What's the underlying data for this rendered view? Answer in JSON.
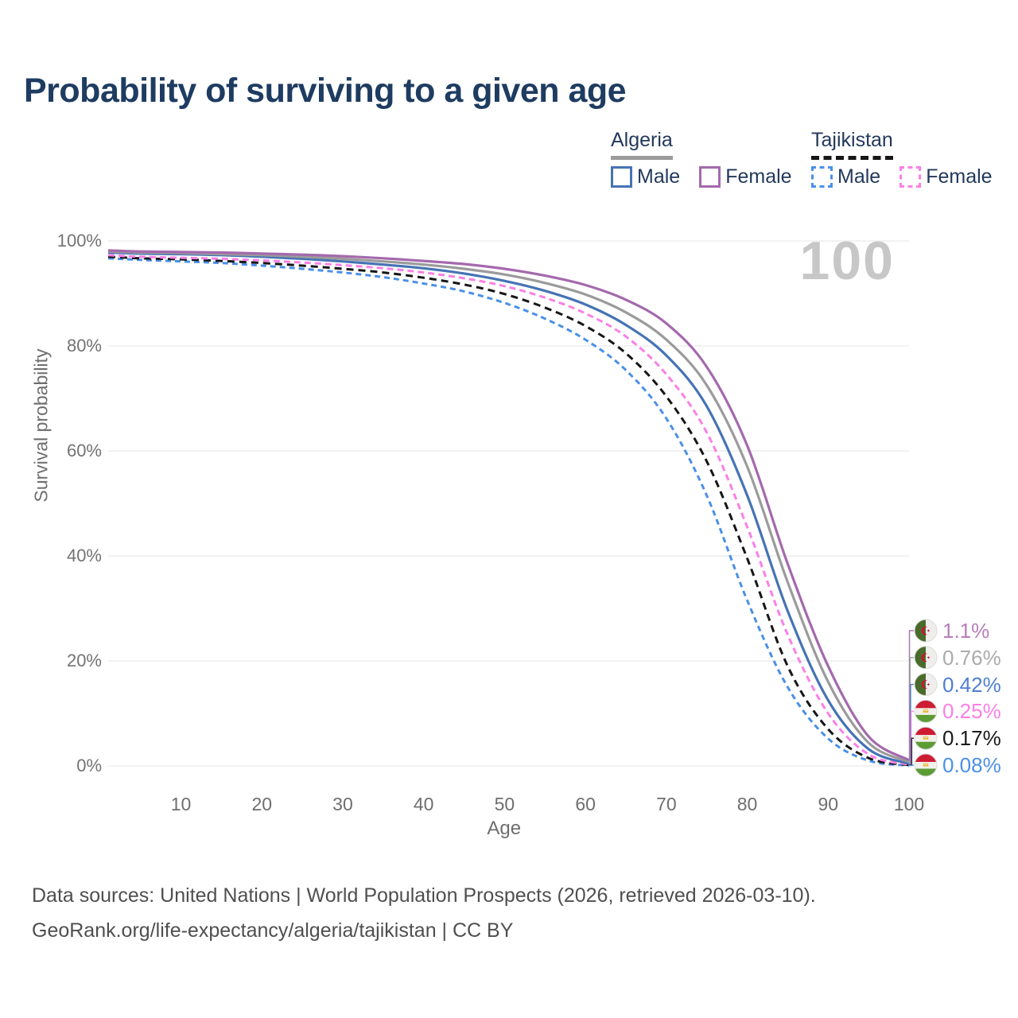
{
  "title": "Probability of surviving to a given age",
  "hover_age_label": "100",
  "legend": {
    "groups": [
      {
        "country": "Algeria",
        "line_style": "solid",
        "underline_color": "#9b9b9b",
        "items": [
          {
            "label": "Male",
            "color": "#4673b5"
          },
          {
            "label": "Female",
            "color": "#a469ad"
          }
        ]
      },
      {
        "country": "Tajikistan",
        "line_style": "dashed",
        "underline_color": "#161616",
        "items": [
          {
            "label": "Male",
            "color": "#4a90e8"
          },
          {
            "label": "Female",
            "color": "#fb80e6"
          }
        ]
      }
    ]
  },
  "chart_data": {
    "type": "line",
    "xlabel": "Age",
    "ylabel": "Survival probability",
    "xlim": [
      1,
      100
    ],
    "ylim": [
      0,
      100
    ],
    "grid": "horizontal",
    "x_ticks": [
      10,
      20,
      30,
      40,
      50,
      60,
      70,
      80,
      90,
      100
    ],
    "y_ticks": [
      {
        "value": 0,
        "label": "0%"
      },
      {
        "value": 20,
        "label": "20%"
      },
      {
        "value": 40,
        "label": "40%"
      },
      {
        "value": 60,
        "label": "60%"
      },
      {
        "value": 80,
        "label": "80%"
      },
      {
        "value": 100,
        "label": "100%"
      }
    ],
    "ages": [
      1,
      5,
      10,
      15,
      20,
      25,
      30,
      35,
      40,
      45,
      50,
      55,
      60,
      65,
      70,
      75,
      80,
      85,
      90,
      95,
      100
    ],
    "series": [
      {
        "name": "Algeria Female",
        "country": "Algeria",
        "sex": "Female",
        "style": "solid",
        "color": "#a469ad",
        "end_label": "1.1%",
        "end_label_color": "#b97dbb",
        "flag": "algeria",
        "values": [
          98.2,
          98.0,
          97.9,
          97.8,
          97.6,
          97.4,
          97.1,
          96.7,
          96.2,
          95.6,
          94.7,
          93.4,
          91.6,
          88.8,
          84.3,
          76.0,
          61.0,
          38.5,
          19.0,
          5.6,
          1.1
        ]
      },
      {
        "name": "Algeria",
        "country": "Algeria",
        "sex": "Both",
        "style": "solid",
        "color": "#9b9b9b",
        "end_label": "0.76%",
        "end_label_color": "#ababab",
        "flag": "algeria",
        "values": [
          98.0,
          97.8,
          97.7,
          97.5,
          97.3,
          97.0,
          96.6,
          96.1,
          95.5,
          94.7,
          93.6,
          92.0,
          89.8,
          86.4,
          81.2,
          72.5,
          57.0,
          35.0,
          16.0,
          4.4,
          0.76
        ]
      },
      {
        "name": "Algeria Male",
        "country": "Algeria",
        "sex": "Male",
        "style": "solid",
        "color": "#4673b5",
        "end_label": "0.42%",
        "end_label_color": "#4e7fd2",
        "flag": "algeria",
        "values": [
          97.8,
          97.6,
          97.5,
          97.3,
          97.0,
          96.6,
          96.1,
          95.5,
          94.8,
          93.8,
          92.4,
          90.5,
          87.9,
          84.0,
          78.2,
          68.5,
          51.5,
          29.5,
          12.5,
          3.2,
          0.42
        ]
      },
      {
        "name": "Tajikistan Female",
        "country": "Tajikistan",
        "sex": "Female",
        "style": "dashed",
        "color": "#fb80e6",
        "end_label": "0.25%",
        "end_label_color": "#fb80e6",
        "flag": "tajikistan",
        "values": [
          97.3,
          97.0,
          96.8,
          96.6,
          96.3,
          95.9,
          95.4,
          94.8,
          94.0,
          92.9,
          91.4,
          89.2,
          86.2,
          81.8,
          74.6,
          63.5,
          45.5,
          25.0,
          10.0,
          2.2,
          0.25
        ]
      },
      {
        "name": "Tajikistan",
        "country": "Tajikistan",
        "sex": "Both",
        "style": "dashed",
        "color": "#161616",
        "end_label": "0.17%",
        "end_label_color": "#1a1a1a",
        "flag": "tajikistan",
        "values": [
          97.0,
          96.7,
          96.5,
          96.2,
          95.8,
          95.3,
          94.7,
          94.0,
          93.0,
          91.7,
          89.9,
          87.3,
          83.8,
          78.6,
          70.4,
          58.0,
          39.5,
          19.0,
          7.0,
          1.5,
          0.17
        ]
      },
      {
        "name": "Tajikistan Male",
        "country": "Tajikistan",
        "sex": "Male",
        "style": "dashed",
        "color": "#4a90e8",
        "end_label": "0.08%",
        "end_label_color": "#4a90e8",
        "flag": "tajikistan",
        "values": [
          96.7,
          96.4,
          96.1,
          95.8,
          95.3,
          94.7,
          94.0,
          93.1,
          91.9,
          90.4,
          88.2,
          85.2,
          81.2,
          75.4,
          66.2,
          51.5,
          31.5,
          15.0,
          5.2,
          1.0,
          0.08
        ]
      }
    ]
  },
  "footer": {
    "line1": "Data sources: United Nations | World Population Prospects (2026, retrieved 2026-03-10).",
    "line2": "GeoRank.org/life-expectancy/algeria/tajikistan | CC BY"
  }
}
